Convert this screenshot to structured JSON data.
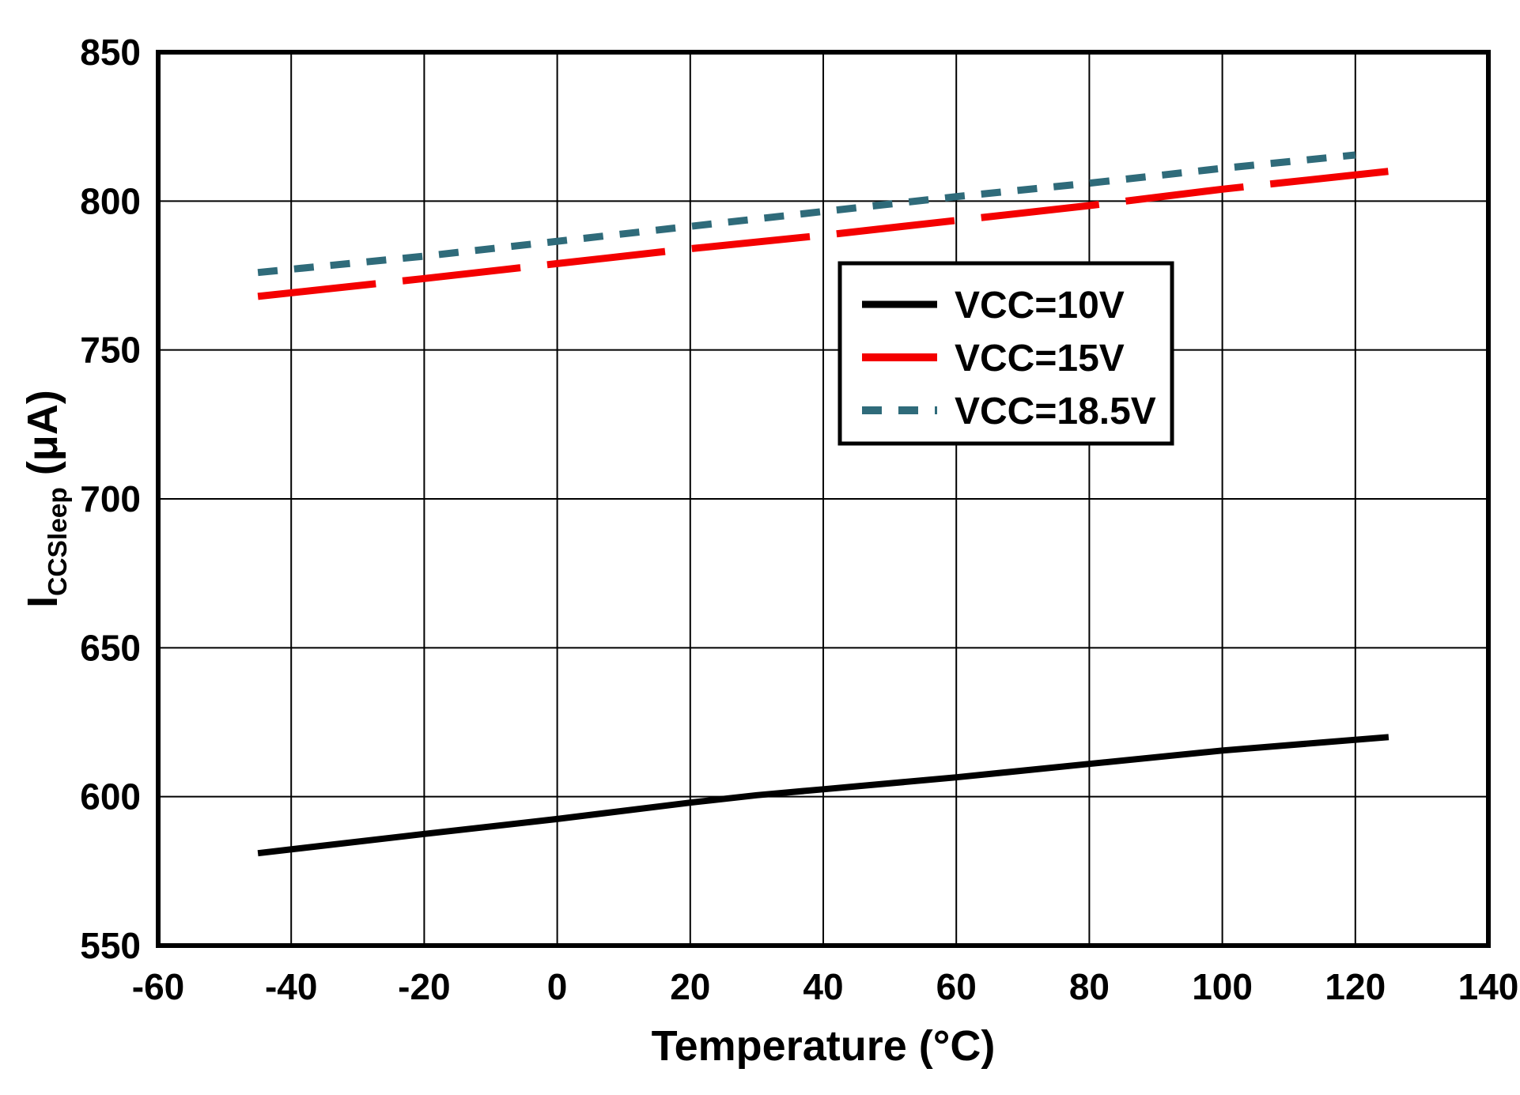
{
  "chart_data": {
    "type": "line",
    "title": "",
    "xlabel": "Temperature (°C)",
    "ylabel_parts": {
      "main": "I",
      "sub": "CCSleep",
      "unit": " (μA)"
    },
    "xlim": [
      -60,
      140
    ],
    "ylim": [
      550,
      850
    ],
    "x_ticks": [
      -60,
      -40,
      -20,
      0,
      20,
      40,
      60,
      80,
      100,
      120,
      140
    ],
    "y_ticks": [
      550,
      600,
      650,
      700,
      750,
      800,
      850
    ],
    "grid": true,
    "legend_position": "upper-right-inside",
    "axis_color": "#000000",
    "series": [
      {
        "name": "VCC=10V",
        "color": "#000000",
        "dash": null,
        "width": 8,
        "x": [
          -45,
          -20,
          0,
          20,
          30,
          40,
          60,
          80,
          100,
          125
        ],
        "y": [
          581,
          587.5,
          592.5,
          598,
          600.5,
          602.5,
          606.5,
          611,
          615.5,
          620
        ]
      },
      {
        "name": "VCC=15V",
        "color": "#F40000",
        "dash": [
          150,
          34
        ],
        "width": 9,
        "x": [
          -45,
          -20,
          0,
          20,
          40,
          60,
          80,
          100,
          125
        ],
        "y": [
          768,
          774,
          779,
          784,
          788.5,
          793.5,
          798.5,
          804,
          810
        ]
      },
      {
        "name": "VCC=18.5V",
        "color": "#2F6B7A",
        "dash": [
          25,
          21
        ],
        "width": 9,
        "x": [
          -45,
          -20,
          0,
          20,
          40,
          60,
          80,
          100,
          120
        ],
        "y": [
          776,
          781.5,
          786.5,
          791.5,
          796.5,
          801.5,
          806,
          811,
          815.5
        ]
      }
    ]
  }
}
